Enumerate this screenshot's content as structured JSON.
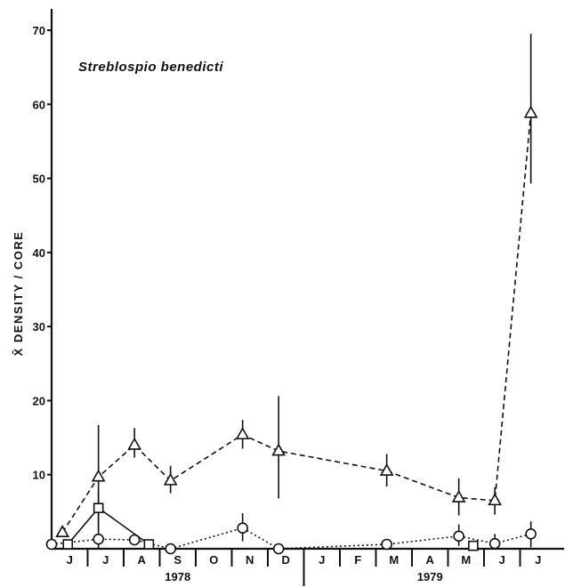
{
  "chart_data": {
    "type": "line",
    "title": "Streblospio benedicti",
    "xlabel": "",
    "ylabel": "X̄ DENSITY / CORE",
    "ylim": [
      0,
      70
    ],
    "yticks": [
      10,
      20,
      30,
      40,
      50,
      60,
      70
    ],
    "months": [
      "J",
      "J",
      "A",
      "S",
      "O",
      "N",
      "D",
      "J",
      "F",
      "M",
      "A",
      "M",
      "J",
      "J"
    ],
    "years": [
      {
        "label": "1978",
        "first_month_index": 0,
        "last_month_index": 6
      },
      {
        "label": "1979",
        "first_month_index": 7,
        "last_month_index": 13
      }
    ],
    "grid": false,
    "series": [
      {
        "marker": "triangle",
        "line_style": "dashed",
        "color": "#111111",
        "points": [
          {
            "x": 0.3,
            "y": 2.2
          },
          {
            "x": 1.3,
            "y": 9.7,
            "err_low": 2.5,
            "err_high": 16.7
          },
          {
            "x": 2.3,
            "y": 14.0,
            "err_low": 12.3,
            "err_high": 16.3
          },
          {
            "x": 3.3,
            "y": 9.2,
            "err_low": 7.5,
            "err_high": 11.2
          },
          {
            "x": 5.3,
            "y": 15.4,
            "err_low": 13.5,
            "err_high": 17.4
          },
          {
            "x": 6.3,
            "y": 13.2,
            "err_low": 6.8,
            "err_high": 20.6
          },
          {
            "x": 9.3,
            "y": 10.5,
            "err_low": 8.4,
            "err_high": 12.8
          },
          {
            "x": 11.3,
            "y": 6.9,
            "err_low": 4.5,
            "err_high": 9.5
          },
          {
            "x": 12.3,
            "y": 6.5,
            "err_low": 4.6,
            "err_high": 8.3
          },
          {
            "x": 13.3,
            "y": 58.8,
            "err_low": 49.3,
            "err_high": 69.5
          }
        ]
      },
      {
        "marker": "circle",
        "line_style": "dotted",
        "color": "#111111",
        "points": [
          {
            "x": 0.0,
            "y": 0.6
          },
          {
            "x": 1.3,
            "y": 1.3,
            "err_low": 0.0,
            "err_high": 7.8
          },
          {
            "x": 2.3,
            "y": 1.2
          },
          {
            "x": 3.3,
            "y": 0.0
          },
          {
            "x": 5.3,
            "y": 2.8,
            "err_low": 1.0,
            "err_high": 4.8
          },
          {
            "x": 6.3,
            "y": 0.0
          },
          {
            "x": 9.3,
            "y": 0.6
          },
          {
            "x": 11.3,
            "y": 1.7,
            "err_low": 0.4,
            "err_high": 3.3
          },
          {
            "x": 12.3,
            "y": 0.7,
            "err_low": 0.0,
            "err_high": 2.0
          },
          {
            "x": 13.3,
            "y": 2.0,
            "err_low": 0.2,
            "err_high": 3.7
          }
        ]
      },
      {
        "marker": "square",
        "line_style": "solid",
        "color": "#111111",
        "points": [
          {
            "x": 0.45,
            "y": 0.6
          },
          {
            "x": 1.3,
            "y": 5.5
          },
          {
            "x": 2.7,
            "y": 0.6
          }
        ]
      },
      {
        "marker": "square",
        "line_style": "none",
        "color": "#111111",
        "points": [
          {
            "x": 11.7,
            "y": 0.4
          }
        ]
      }
    ]
  }
}
